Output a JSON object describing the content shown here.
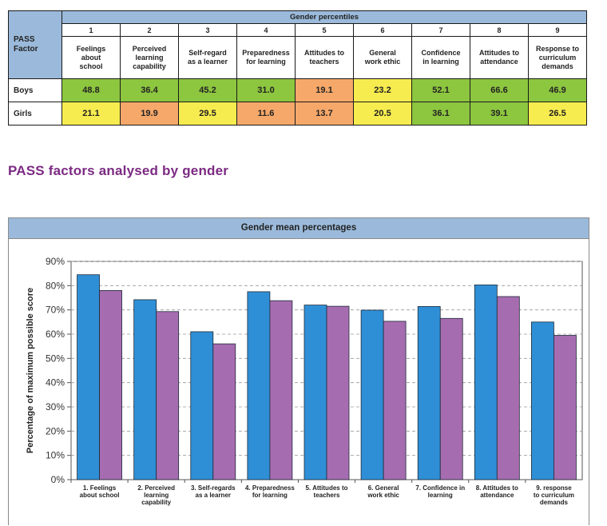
{
  "table": {
    "title": "Gender percentiles",
    "factor_header": "PASS\nFactor",
    "numbers": [
      "1",
      "2",
      "3",
      "4",
      "5",
      "6",
      "7",
      "8",
      "9"
    ],
    "factors": [
      "Feelings\nabout\nschool",
      "Perceived\nlearning\ncapability",
      "Self-regard\nas a learner",
      "Preparedness\nfor learning",
      "Attitudes to\nteachers",
      "General\nwork ethic",
      "Confidence\nin learning",
      "Attitudes to\nattendance",
      "Response to\ncurriculum\ndemands"
    ],
    "rows": [
      {
        "label": "Boys",
        "values": [
          "48.8",
          "36.4",
          "45.2",
          "31.0",
          "19.1",
          "23.2",
          "52.1",
          "66.6",
          "46.9"
        ],
        "colors": [
          "green",
          "green",
          "green",
          "green",
          "orange",
          "yellow",
          "green",
          "green",
          "green"
        ]
      },
      {
        "label": "Girls",
        "values": [
          "21.1",
          "19.9",
          "29.5",
          "11.6",
          "13.7",
          "20.5",
          "36.1",
          "39.1",
          "26.5"
        ],
        "colors": [
          "yellow",
          "orange",
          "yellow",
          "orange",
          "orange",
          "yellow",
          "green",
          "green",
          "yellow"
        ]
      }
    ],
    "color_map": {
      "green": "#8dc63f",
      "yellow": "#f7ec4f",
      "orange": "#f5a86a"
    }
  },
  "section_heading": "PASS factors analysed by gender",
  "chart_data": {
    "type": "bar",
    "title": "Gender mean percentages",
    "ylabel": "Percentage of maximum possible score",
    "xlabel": "",
    "ylim": [
      0,
      90
    ],
    "yticks": [
      "0%",
      "10%",
      "20%",
      "30%",
      "40%",
      "50%",
      "60%",
      "70%",
      "80%",
      "90%"
    ],
    "grid": true,
    "categories": [
      "1. Feelings\nabout school",
      "2. Perceived\nlearning\ncapability",
      "3. Self-regards\nas a learner",
      "4. Preparedness\nfor learning",
      "5. Attitudes to\nteachers",
      "6. General\nwork ethic",
      "7. Confidence in\nlearning",
      "8. Attitudes to\nattendance",
      "9. response\nto curriculum\ndemands"
    ],
    "series": [
      {
        "values": [
          84.5,
          74.2,
          61.0,
          77.5,
          72.0,
          69.9,
          71.4,
          80.3,
          65.0
        ],
        "color": "#2f8fd6"
      },
      {
        "values": [
          78.0,
          69.3,
          56.0,
          73.8,
          71.5,
          65.3,
          66.5,
          75.5,
          59.5
        ],
        "color": "#a66cb0"
      }
    ]
  }
}
